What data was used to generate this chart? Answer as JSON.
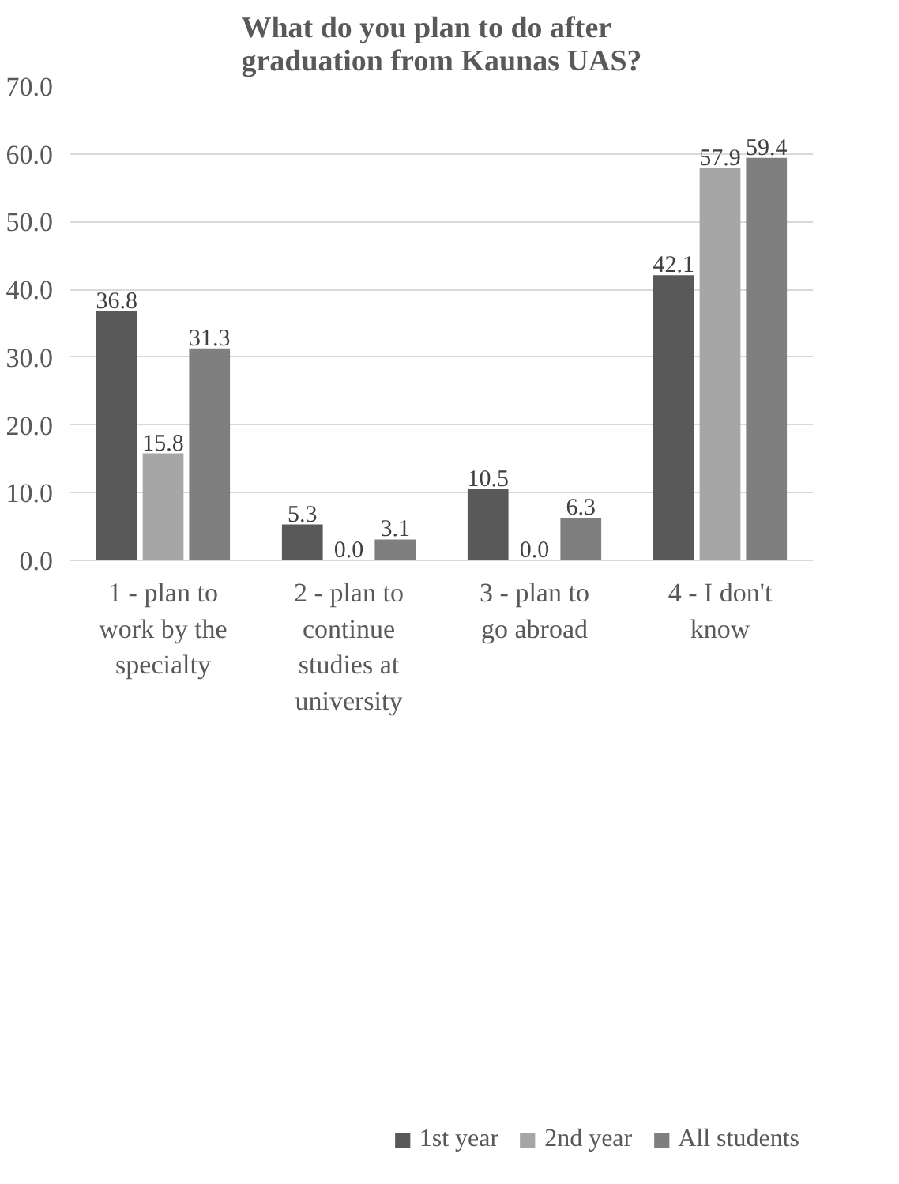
{
  "chart_data": {
    "type": "bar",
    "title": "What do you plan to do after graduation from Kaunas UAS?",
    "categories": [
      "1 - plan to work by the specialty",
      "2 - plan to continue studies at university",
      "3 - plan to go abroad",
      "4 - I don't know"
    ],
    "series": [
      {
        "name": "1st year",
        "color": "#595959",
        "values": [
          36.8,
          5.3,
          10.5,
          42.1
        ],
        "value_labels": [
          "36.8",
          "5.3",
          "10.5",
          "42.1"
        ]
      },
      {
        "name": "2nd year",
        "color": "#a6a6a6",
        "values": [
          15.8,
          0.0,
          0.0,
          57.9
        ],
        "value_labels": [
          "15.8",
          "0.0",
          "0.0",
          "57.9"
        ]
      },
      {
        "name": "All students",
        "color": "#7f7f7f",
        "values": [
          31.3,
          3.1,
          6.3,
          59.4
        ],
        "value_labels": [
          "31.3",
          "3.1",
          "6.3",
          "59.4"
        ]
      }
    ],
    "ylim": [
      0,
      70
    ],
    "yticks": [
      {
        "value": 0,
        "label": "0.0"
      },
      {
        "value": 10,
        "label": "10.0"
      },
      {
        "value": 20,
        "label": "20.0"
      },
      {
        "value": 30,
        "label": "30.0"
      },
      {
        "value": 40,
        "label": "40.0"
      },
      {
        "value": 50,
        "label": "50.0"
      },
      {
        "value": 60,
        "label": "60.0"
      },
      {
        "value": 70,
        "label": "70.0"
      }
    ],
    "grid": "y",
    "legend": "bottom"
  }
}
